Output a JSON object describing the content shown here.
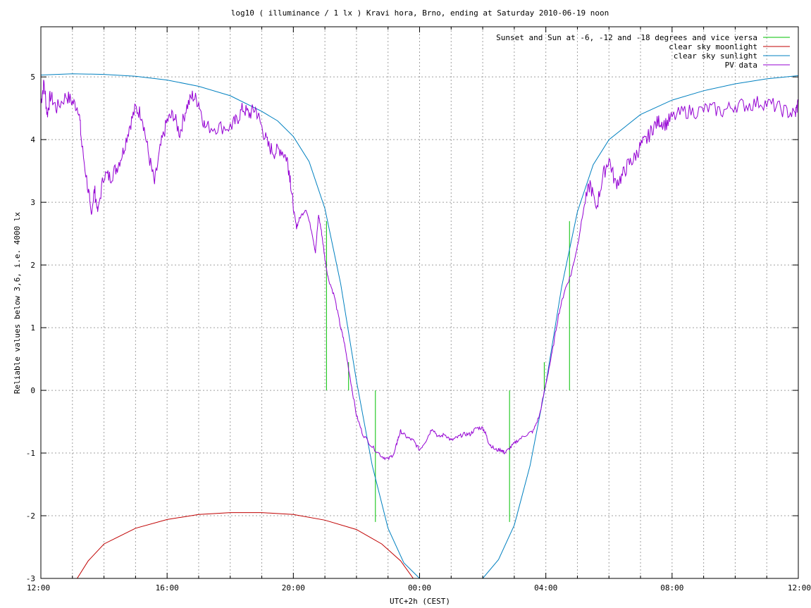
{
  "chart_data": {
    "type": "line",
    "title": "log10 ( illuminance / 1 lx ) Kravi hora, Brno, ending at Saturday 2010-06-19 noon",
    "xlabel": "UTC+2h (CEST)",
    "ylabel": "Reliable values below 3,6, i.e. 4000 lx",
    "xlim": [
      12,
      36
    ],
    "ylim": [
      -3,
      5.8
    ],
    "grid": true,
    "legend_position": "top-right",
    "x_ticks": [
      {
        "value": 12,
        "label": "12:00"
      },
      {
        "value": 16,
        "label": "16:00"
      },
      {
        "value": 20,
        "label": "20:00"
      },
      {
        "value": 24,
        "label": "00:00"
      },
      {
        "value": 28,
        "label": "04:00"
      },
      {
        "value": 32,
        "label": "08:00"
      },
      {
        "value": 36,
        "label": "12:00"
      }
    ],
    "y_ticks": [
      {
        "value": -3,
        "label": "-3"
      },
      {
        "value": -2,
        "label": "-2"
      },
      {
        "value": -1,
        "label": "-1"
      },
      {
        "value": 0,
        "label": "0"
      },
      {
        "value": 1,
        "label": "1"
      },
      {
        "value": 2,
        "label": "2"
      },
      {
        "value": 3,
        "label": "3"
      },
      {
        "value": 4,
        "label": "4"
      },
      {
        "value": 5,
        "label": "5"
      }
    ],
    "series": [
      {
        "name": "Sunset and Sun at -6, -12 and -18 degrees and vice versa",
        "color": "#00c000",
        "style": "markers",
        "segments": [
          [
            [
              21.05,
              0
            ],
            [
              21.05,
              2.7
            ]
          ],
          [
            [
              21.75,
              0
            ],
            [
              21.75,
              0.45
            ]
          ],
          [
            [
              22.6,
              0
            ],
            [
              22.6,
              -2.1
            ]
          ],
          [
            [
              26.85,
              0
            ],
            [
              26.85,
              -2.1
            ]
          ],
          [
            [
              27.95,
              0
            ],
            [
              27.95,
              0.45
            ]
          ],
          [
            [
              28.75,
              0
            ],
            [
              28.75,
              2.7
            ]
          ]
        ]
      },
      {
        "name": "clear sky moonlight",
        "color": "#c00000",
        "points": [
          [
            13.15,
            -3
          ],
          [
            13.5,
            -2.72
          ],
          [
            14,
            -2.45
          ],
          [
            15,
            -2.2
          ],
          [
            16,
            -2.06
          ],
          [
            17,
            -1.98
          ],
          [
            18,
            -1.95
          ],
          [
            19,
            -1.95
          ],
          [
            20,
            -1.98
          ],
          [
            21,
            -2.07
          ],
          [
            22,
            -2.22
          ],
          [
            22.8,
            -2.45
          ],
          [
            23.4,
            -2.72
          ],
          [
            23.8,
            -3
          ]
        ]
      },
      {
        "name": "clear sky sunlight",
        "color": "#0080c0",
        "points": [
          [
            12,
            5.03
          ],
          [
            13,
            5.05
          ],
          [
            14,
            5.04
          ],
          [
            15,
            5.01
          ],
          [
            16,
            4.95
          ],
          [
            17,
            4.85
          ],
          [
            18,
            4.7
          ],
          [
            19,
            4.45
          ],
          [
            19.5,
            4.3
          ],
          [
            20,
            4.05
          ],
          [
            20.5,
            3.65
          ],
          [
            21,
            2.9
          ],
          [
            21.5,
            1.7
          ],
          [
            22,
            0.15
          ],
          [
            22.5,
            -1.2
          ],
          [
            23,
            -2.2
          ],
          [
            23.5,
            -2.75
          ],
          [
            24,
            -3
          ],
          [
            24.2,
            -3.1
          ],
          [
            25,
            -3.25
          ],
          [
            25.8,
            -3.1
          ],
          [
            26,
            -3
          ],
          [
            26.5,
            -2.7
          ],
          [
            27,
            -2.15
          ],
          [
            27.5,
            -1.2
          ],
          [
            28,
            0.1
          ],
          [
            28.5,
            1.65
          ],
          [
            29,
            2.85
          ],
          [
            29.5,
            3.6
          ],
          [
            30,
            4.0
          ],
          [
            31,
            4.4
          ],
          [
            32,
            4.63
          ],
          [
            33,
            4.78
          ],
          [
            34,
            4.89
          ],
          [
            35,
            4.97
          ],
          [
            36,
            5.02
          ]
        ]
      },
      {
        "name": "PV data",
        "color": "#9400d3",
        "jitter": true,
        "points": [
          [
            12,
            4.6
          ],
          [
            12.1,
            4.9
          ],
          [
            12.2,
            4.4
          ],
          [
            12.3,
            4.7
          ],
          [
            12.5,
            4.5
          ],
          [
            12.8,
            4.7
          ],
          [
            13.0,
            4.6
          ],
          [
            13.2,
            4.5
          ],
          [
            13.3,
            3.9
          ],
          [
            13.5,
            3.2
          ],
          [
            13.6,
            2.8
          ],
          [
            13.7,
            3.2
          ],
          [
            13.8,
            2.85
          ],
          [
            14.0,
            3.45
          ],
          [
            14.2,
            3.4
          ],
          [
            14.4,
            3.55
          ],
          [
            14.6,
            3.8
          ],
          [
            14.8,
            4.2
          ],
          [
            15.0,
            4.5
          ],
          [
            15.2,
            4.4
          ],
          [
            15.4,
            3.8
          ],
          [
            15.6,
            3.3
          ],
          [
            15.8,
            3.9
          ],
          [
            16.0,
            4.3
          ],
          [
            16.2,
            4.4
          ],
          [
            16.4,
            4.1
          ],
          [
            16.6,
            4.5
          ],
          [
            16.8,
            4.7
          ],
          [
            17.0,
            4.6
          ],
          [
            17.2,
            4.2
          ],
          [
            17.6,
            4.2
          ],
          [
            18.0,
            4.2
          ],
          [
            18.2,
            4.3
          ],
          [
            18.4,
            4.5
          ],
          [
            18.6,
            4.4
          ],
          [
            18.8,
            4.5
          ],
          [
            19.0,
            4.2
          ],
          [
            19.2,
            3.9
          ],
          [
            19.4,
            3.8
          ],
          [
            19.6,
            3.85
          ],
          [
            19.8,
            3.7
          ],
          [
            19.9,
            3.4
          ],
          [
            20.0,
            2.9
          ],
          [
            20.1,
            2.6
          ],
          [
            20.2,
            2.75
          ],
          [
            20.4,
            2.9
          ],
          [
            20.6,
            2.5
          ],
          [
            20.7,
            2.2
          ],
          [
            20.8,
            2.8
          ],
          [
            20.9,
            2.5
          ],
          [
            21.0,
            2.1
          ],
          [
            21.1,
            1.8
          ],
          [
            21.3,
            1.5
          ],
          [
            21.5,
            1.0
          ],
          [
            21.6,
            0.8
          ],
          [
            21.8,
            0.2
          ],
          [
            22.0,
            -0.4
          ],
          [
            22.2,
            -0.7
          ],
          [
            22.5,
            -0.9
          ],
          [
            22.8,
            -1.05
          ],
          [
            23.0,
            -1.1
          ],
          [
            23.2,
            -1.0
          ],
          [
            23.3,
            -0.8
          ],
          [
            23.4,
            -0.65
          ],
          [
            23.6,
            -0.75
          ],
          [
            23.8,
            -0.8
          ],
          [
            24.0,
            -0.95
          ],
          [
            24.2,
            -0.8
          ],
          [
            24.4,
            -0.6
          ],
          [
            24.6,
            -0.75
          ],
          [
            24.8,
            -0.7
          ],
          [
            25.0,
            -0.8
          ],
          [
            25.2,
            -0.75
          ],
          [
            25.4,
            -0.7
          ],
          [
            25.6,
            -0.7
          ],
          [
            25.8,
            -0.6
          ],
          [
            26.0,
            -0.6
          ],
          [
            26.1,
            -0.7
          ],
          [
            26.2,
            -0.85
          ],
          [
            26.4,
            -0.95
          ],
          [
            26.6,
            -0.95
          ],
          [
            26.7,
            -1.0
          ],
          [
            26.9,
            -0.9
          ],
          [
            27.1,
            -0.8
          ],
          [
            27.4,
            -0.7
          ],
          [
            27.6,
            -0.65
          ],
          [
            27.8,
            -0.4
          ],
          [
            28.0,
            0.1
          ],
          [
            28.2,
            0.6
          ],
          [
            28.4,
            1.2
          ],
          [
            28.6,
            1.6
          ],
          [
            28.8,
            1.85
          ],
          [
            29.0,
            2.3
          ],
          [
            29.2,
            2.9
          ],
          [
            29.4,
            3.3
          ],
          [
            29.6,
            2.9
          ],
          [
            29.8,
            3.4
          ],
          [
            30.0,
            3.7
          ],
          [
            30.2,
            3.3
          ],
          [
            30.4,
            3.4
          ],
          [
            30.6,
            3.6
          ],
          [
            30.8,
            3.7
          ],
          [
            31.0,
            3.9
          ],
          [
            31.2,
            4.0
          ],
          [
            31.4,
            4.2
          ],
          [
            31.6,
            4.3
          ],
          [
            31.8,
            4.25
          ],
          [
            32.0,
            4.35
          ],
          [
            32.4,
            4.45
          ],
          [
            32.8,
            4.45
          ],
          [
            33.2,
            4.5
          ],
          [
            33.6,
            4.45
          ],
          [
            34.0,
            4.55
          ],
          [
            34.4,
            4.55
          ],
          [
            34.8,
            4.6
          ],
          [
            35.2,
            4.55
          ],
          [
            35.6,
            4.45
          ],
          [
            35.9,
            4.4
          ],
          [
            36.0,
            4.6
          ]
        ]
      }
    ]
  }
}
